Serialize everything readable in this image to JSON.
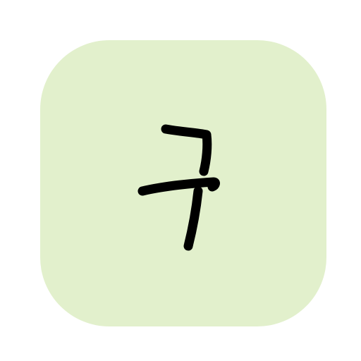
{
  "icon": {
    "character": "ㅋ",
    "tile_color": "#e2f0cc",
    "glyph_color": "#000000"
  }
}
